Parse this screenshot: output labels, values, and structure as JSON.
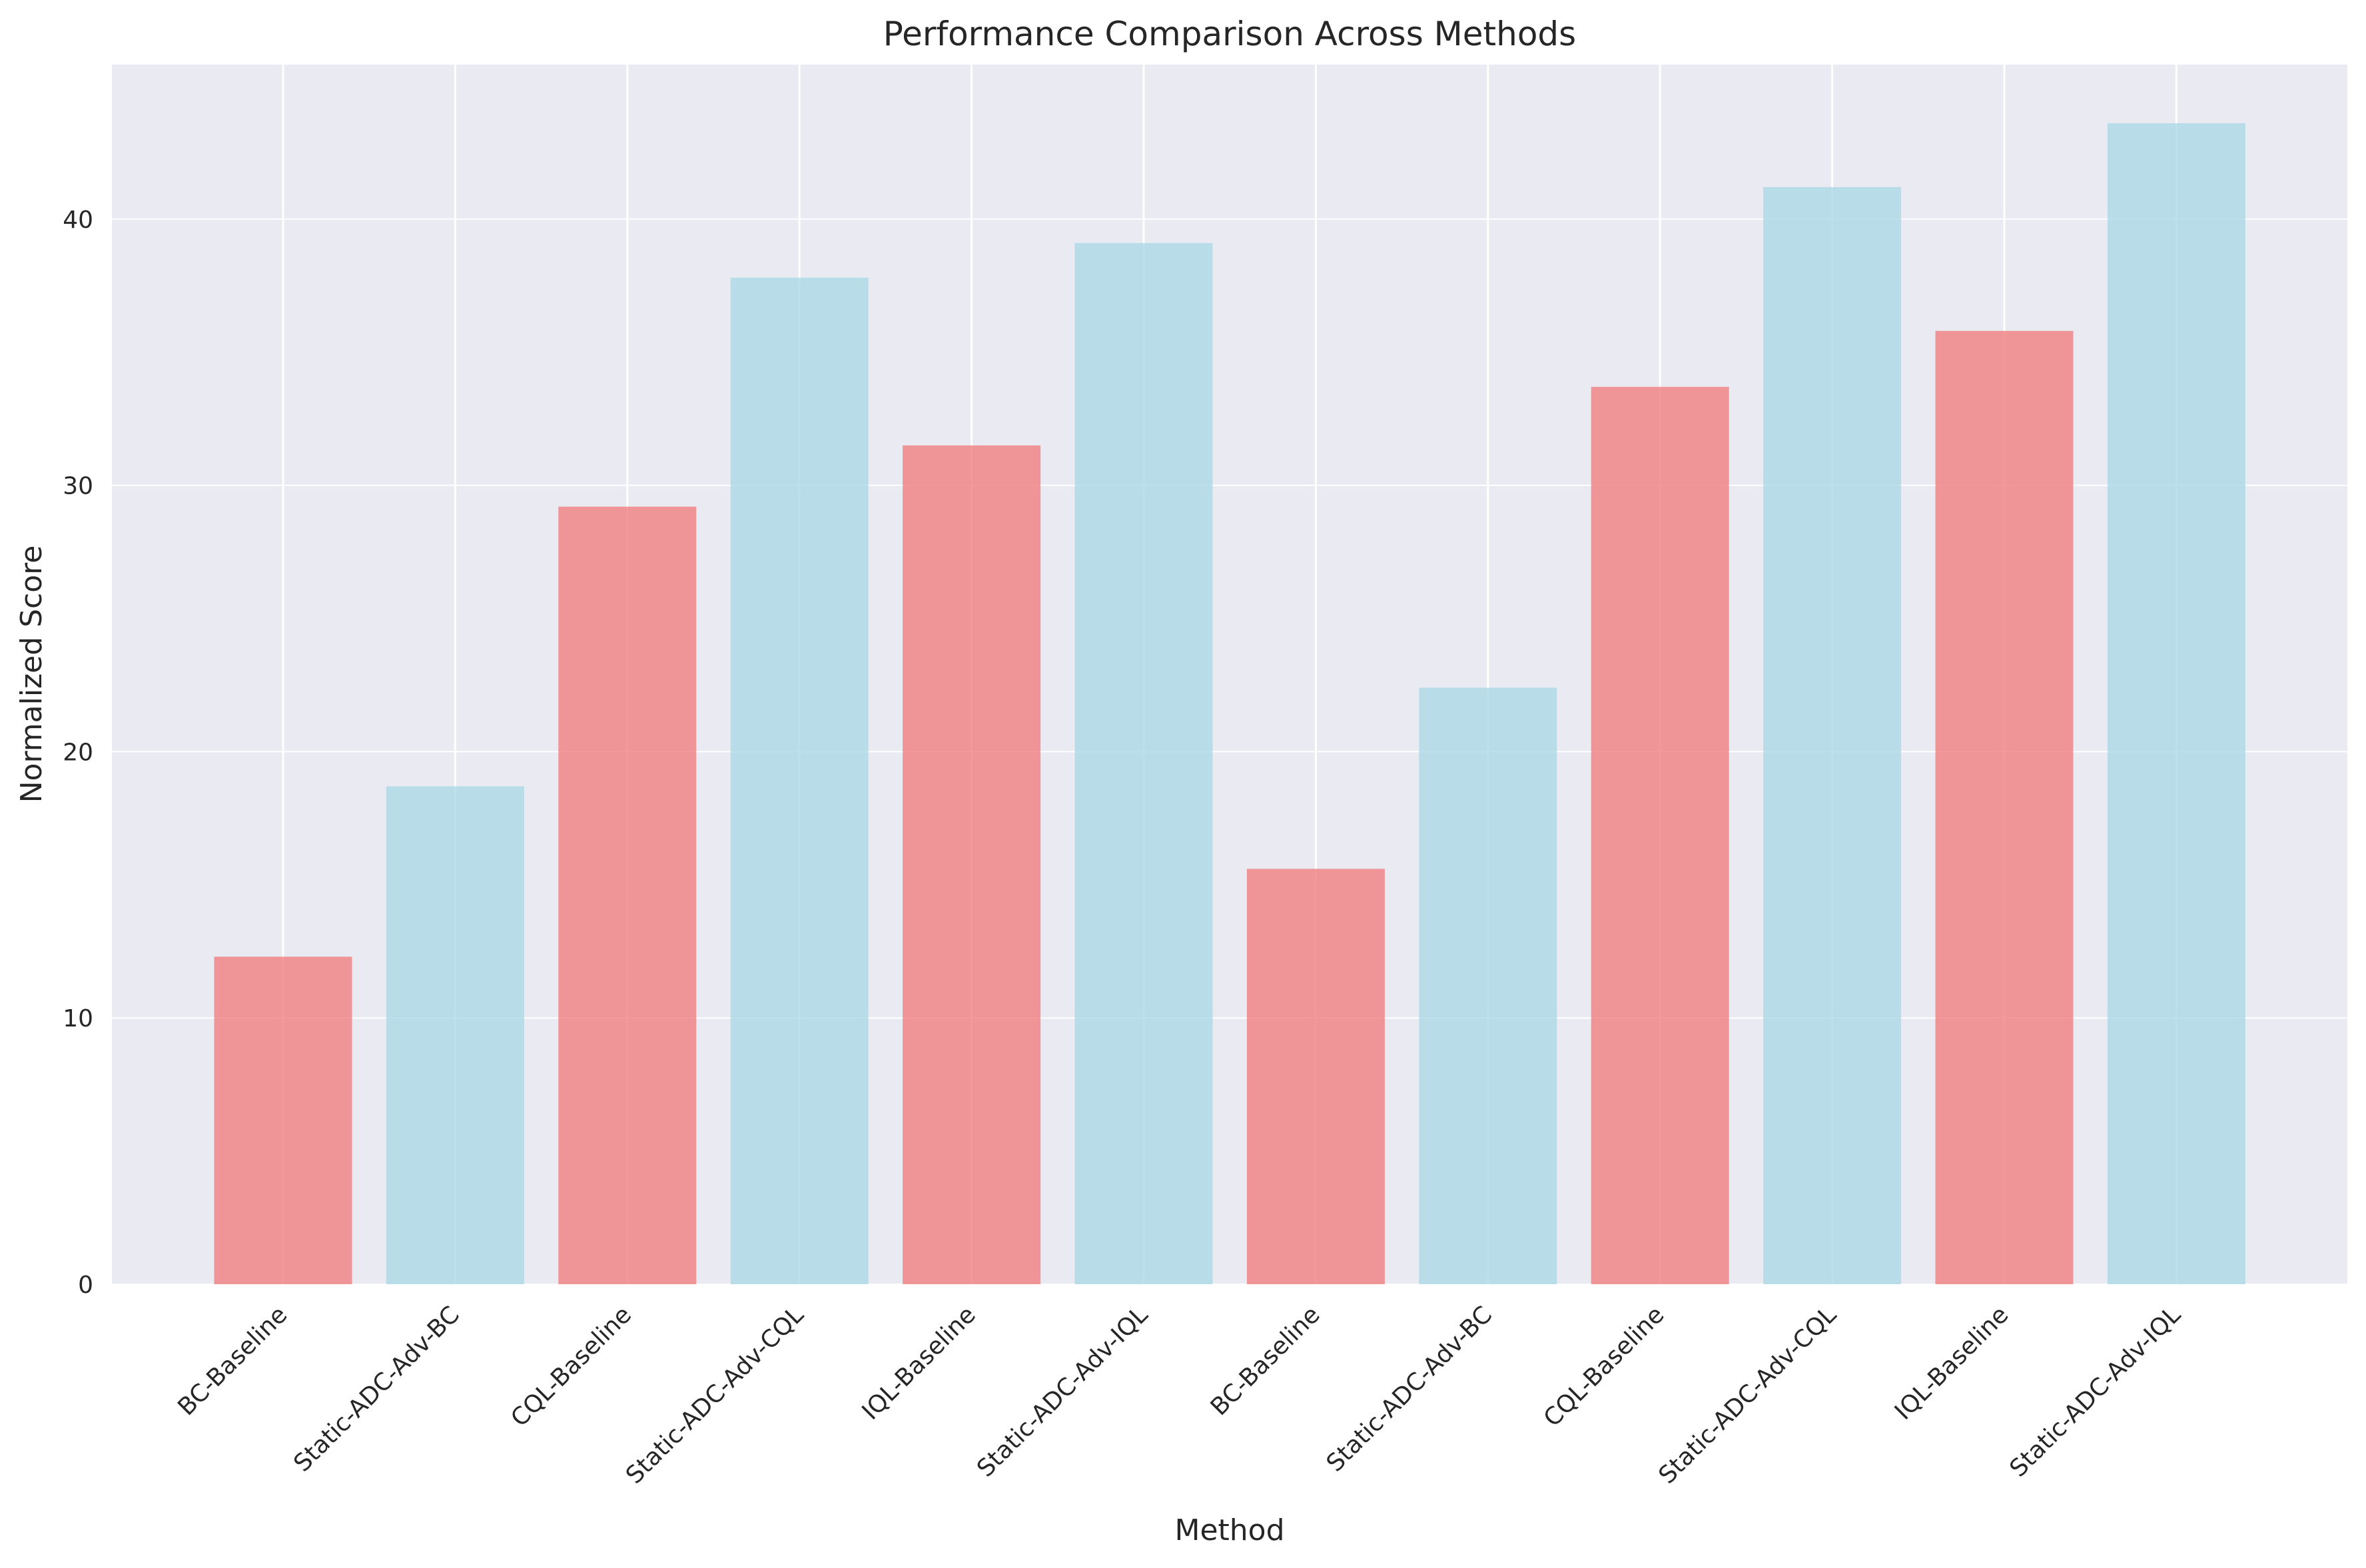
{
  "chart_data": {
    "type": "bar",
    "title": "Performance Comparison Across Methods",
    "xlabel": "Method",
    "ylabel": "Normalized Score",
    "ylim": [
      0,
      45.8
    ],
    "yticks": [
      0,
      10,
      20,
      30,
      40
    ],
    "grid": true,
    "categories": [
      "BC-Baseline",
      "Static-ADC-Adv-BC",
      "CQL-Baseline",
      "Static-ADC-Adv-CQL",
      "IQL-Baseline",
      "Static-ADC-Adv-IQL",
      "BC-Baseline",
      "Static-ADC-Adv-BC",
      "CQL-Baseline",
      "Static-ADC-Adv-CQL",
      "IQL-Baseline",
      "Static-ADC-Adv-IQL"
    ],
    "values": [
      12.3,
      18.7,
      29.2,
      37.8,
      31.5,
      39.1,
      15.6,
      22.4,
      33.7,
      41.2,
      35.8,
      43.6
    ],
    "bar_colors": [
      "#f08080",
      "#add8e6",
      "#f08080",
      "#add8e6",
      "#f08080",
      "#add8e6",
      "#f08080",
      "#add8e6",
      "#f08080",
      "#add8e6",
      "#f08080",
      "#add8e6"
    ],
    "plot_background": "#eaeaf2"
  }
}
